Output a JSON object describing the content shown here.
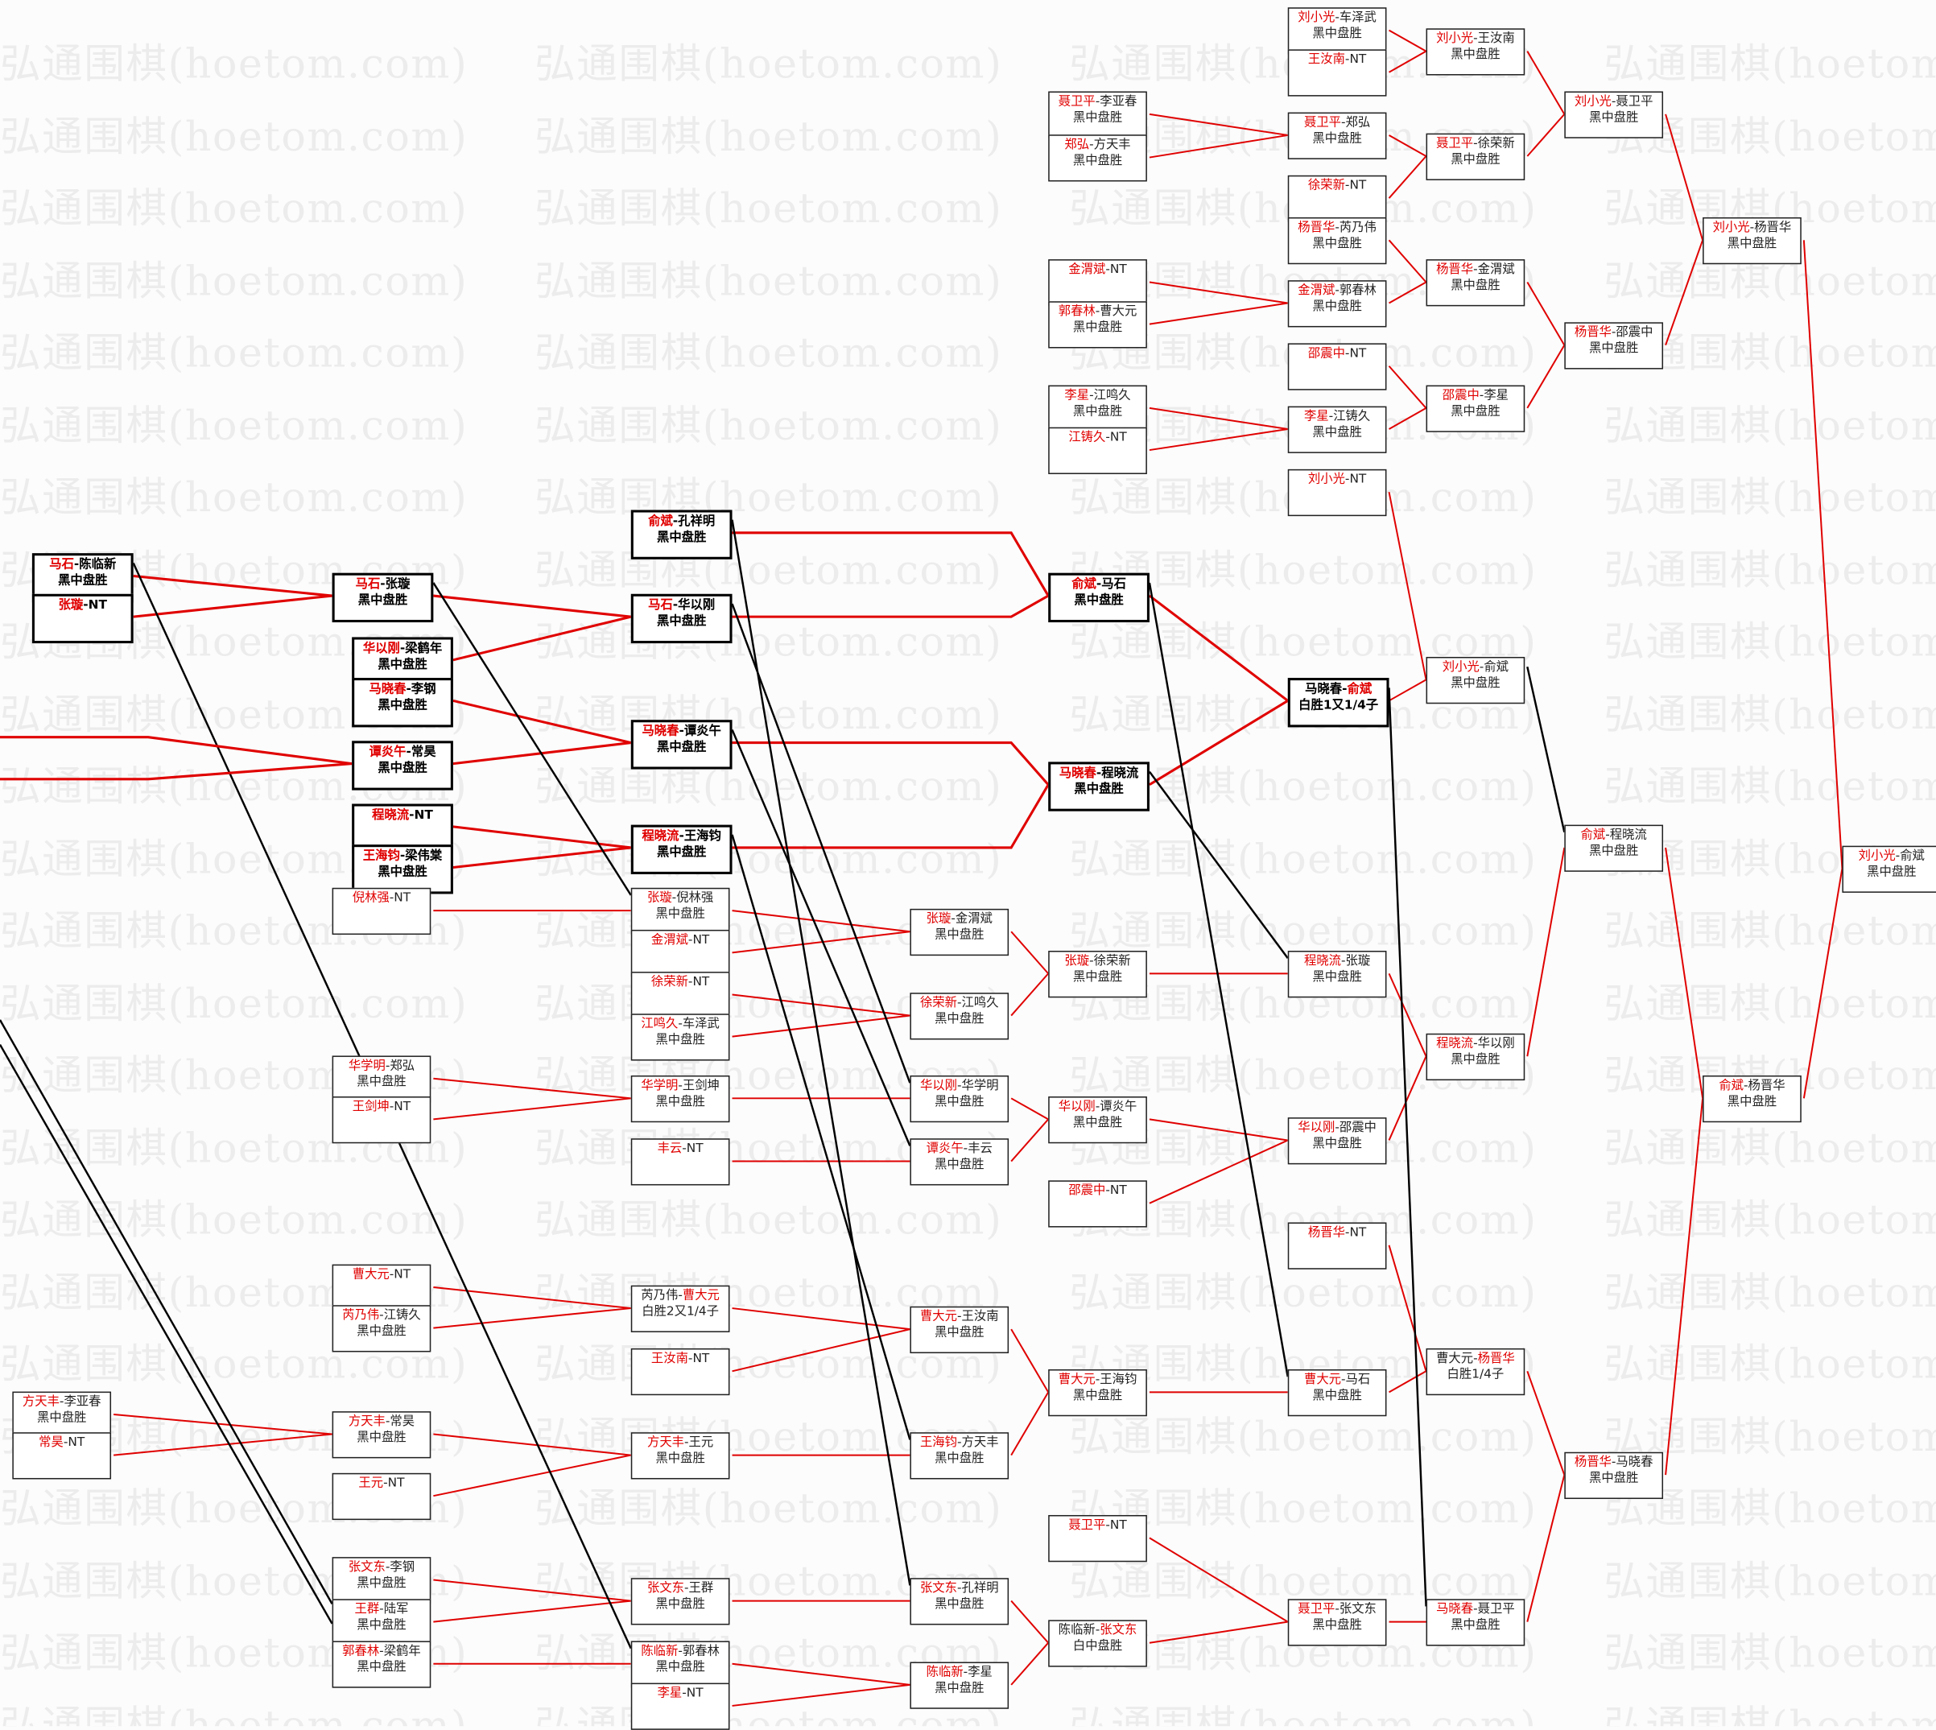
{
  "watermark": "弘通围棋(hoetom.com)",
  "colors": {
    "winner_text": "#e00000",
    "winner_path": "#e00000",
    "loser_path": "#000000"
  },
  "matches": {
    "a1": {
      "p1": "方天丰",
      "p2": "李亚春",
      "red": 1,
      "result": "黑中盘胜"
    },
    "a2": {
      "p1": "常昊",
      "p2": "NT",
      "red": 1,
      "result": ""
    },
    "a3": {
      "p1": "马石",
      "p2": "陈临新",
      "red": 1,
      "result": "黑中盘胜",
      "bold": true
    },
    "a4": {
      "p1": "张璇",
      "p2": "NT",
      "red": 1,
      "result": "",
      "bold": true
    },
    "b1": {
      "p1": "马石",
      "p2": "张璇",
      "red": 1,
      "result": "黑中盘胜",
      "bold": true
    },
    "b2": {
      "p1": "华以刚",
      "p2": "梁鹤年",
      "red": 1,
      "result": "黑中盘胜",
      "bold": true
    },
    "b3": {
      "p1": "马晓春",
      "p2": "李钢",
      "red": 1,
      "result": "黑中盘胜",
      "bold": true
    },
    "b4": {
      "p1": "谭炎午",
      "p2": "常昊",
      "red": 1,
      "result": "黑中盘胜",
      "bold": true
    },
    "b5": {
      "p1": "程晓流",
      "p2": "NT",
      "red": 1,
      "result": "",
      "bold": true
    },
    "b6": {
      "p1": "王海钧",
      "p2": "梁伟棠",
      "red": 1,
      "result": "黑中盘胜",
      "bold": true
    },
    "b7": {
      "p1": "倪林强",
      "p2": "NT",
      "red": 1,
      "result": ""
    },
    "b8": {
      "p1": "华学明",
      "p2": "郑弘",
      "red": 1,
      "result": "黑中盘胜"
    },
    "b9": {
      "p1": "王剑坤",
      "p2": "NT",
      "red": 1,
      "result": ""
    },
    "b10": {
      "p1": "曹大元",
      "p2": "NT",
      "red": 1,
      "result": ""
    },
    "b11": {
      "p1": "芮乃伟",
      "p2": "江铸久",
      "red": 1,
      "result": "黑中盘胜"
    },
    "b12": {
      "p1": "方天丰",
      "p2": "常昊",
      "red": 1,
      "result": "黑中盘胜"
    },
    "b13": {
      "p1": "王元",
      "p2": "NT",
      "red": 1,
      "result": ""
    },
    "b14": {
      "p1": "张文东",
      "p2": "李钢",
      "red": 1,
      "result": "黑中盘胜"
    },
    "b15": {
      "p1": "王群",
      "p2": "陆军",
      "red": 1,
      "result": "黑中盘胜"
    },
    "b16": {
      "p1": "郭春林",
      "p2": "梁鹤年",
      "red": 1,
      "result": "黑中盘胜"
    },
    "c1": {
      "p1": "俞斌",
      "p2": "孔祥明",
      "red": 1,
      "result": "黑中盘胜",
      "bold": true
    },
    "c2": {
      "p1": "马石",
      "p2": "华以刚",
      "red": 1,
      "result": "黑中盘胜",
      "bold": true
    },
    "c3": {
      "p1": "马晓春",
      "p2": "谭炎午",
      "red": 1,
      "result": "黑中盘胜",
      "bold": true
    },
    "c4": {
      "p1": "程晓流",
      "p2": "王海钧",
      "red": 1,
      "result": "黑中盘胜",
      "bold": true
    },
    "c5": {
      "p1": "张璇",
      "p2": "倪林强",
      "red": 1,
      "result": "黑中盘胜"
    },
    "c6": {
      "p1": "金渭斌",
      "p2": "NT",
      "red": 1,
      "result": ""
    },
    "c7": {
      "p1": "徐荣新",
      "p2": "NT",
      "red": 1,
      "result": ""
    },
    "c8": {
      "p1": "江鸣久",
      "p2": "车泽武",
      "red": 1,
      "result": "黑中盘胜"
    },
    "c9": {
      "p1": "华学明",
      "p2": "王剑坤",
      "red": 1,
      "result": "黑中盘胜"
    },
    "c10": {
      "p1": "丰云",
      "p2": "NT",
      "red": 1,
      "result": ""
    },
    "c11": {
      "p1": "芮乃伟",
      "p2": "曹大元",
      "red": 2,
      "result": "白胜2又1/4子"
    },
    "c12": {
      "p1": "王汝南",
      "p2": "NT",
      "red": 1,
      "result": ""
    },
    "c13": {
      "p1": "方天丰",
      "p2": "王元",
      "red": 1,
      "result": "黑中盘胜"
    },
    "c14": {
      "p1": "张文东",
      "p2": "王群",
      "red": 1,
      "result": "黑中盘胜"
    },
    "c15": {
      "p1": "陈临新",
      "p2": "郭春林",
      "red": 1,
      "result": "黑中盘胜"
    },
    "c16": {
      "p1": "李星",
      "p2": "NT",
      "red": 1,
      "result": ""
    },
    "d1": {
      "p1": "张璇",
      "p2": "金渭斌",
      "red": 1,
      "result": "黑中盘胜"
    },
    "d2": {
      "p1": "徐荣新",
      "p2": "江鸣久",
      "red": 1,
      "result": "黑中盘胜"
    },
    "d3": {
      "p1": "华以刚",
      "p2": "华学明",
      "red": 1,
      "result": "黑中盘胜"
    },
    "d4": {
      "p1": "谭炎午",
      "p2": "丰云",
      "red": 1,
      "result": "黑中盘胜"
    },
    "d5": {
      "p1": "曹大元",
      "p2": "王汝南",
      "red": 1,
      "result": "黑中盘胜"
    },
    "d6": {
      "p1": "王海钧",
      "p2": "方天丰",
      "red": 1,
      "result": "黑中盘胜"
    },
    "d7": {
      "p1": "张文东",
      "p2": "孔祥明",
      "red": 1,
      "result": "黑中盘胜"
    },
    "d8": {
      "p1": "陈临新",
      "p2": "李星",
      "red": 1,
      "result": "黑中盘胜"
    },
    "e1": {
      "p1": "聂卫平",
      "p2": "李亚春",
      "red": 1,
      "result": "黑中盘胜"
    },
    "e2": {
      "p1": "郑弘",
      "p2": "方天丰",
      "red": 1,
      "result": "黑中盘胜"
    },
    "e3": {
      "p1": "金渭斌",
      "p2": "NT",
      "red": 1,
      "result": ""
    },
    "e4": {
      "p1": "郭春林",
      "p2": "曹大元",
      "red": 1,
      "result": "黑中盘胜"
    },
    "e5": {
      "p1": "李星",
      "p2": "江鸣久",
      "red": 1,
      "result": "黑中盘胜"
    },
    "e6": {
      "p1": "江铸久",
      "p2": "NT",
      "red": 1,
      "result": ""
    },
    "e7": {
      "p1": "俞斌",
      "p2": "马石",
      "red": 1,
      "result": "黑中盘胜",
      "bold": true
    },
    "e8": {
      "p1": "马晓春",
      "p2": "程晓流",
      "red": 1,
      "result": "黑中盘胜",
      "bold": true
    },
    "e9": {
      "p1": "张璇",
      "p2": "徐荣新",
      "red": 1,
      "result": "黑中盘胜"
    },
    "e10": {
      "p1": "华以刚",
      "p2": "谭炎午",
      "red": 1,
      "result": "黑中盘胜"
    },
    "e11": {
      "p1": "邵震中",
      "p2": "NT",
      "red": 1,
      "result": ""
    },
    "e12": {
      "p1": "曹大元",
      "p2": "王海钧",
      "red": 1,
      "result": "黑中盘胜"
    },
    "e13": {
      "p1": "聂卫平",
      "p2": "NT",
      "red": 1,
      "result": ""
    },
    "e14": {
      "p1": "陈临新",
      "p2": "张文东",
      "red": 2,
      "result": "白中盘胜"
    },
    "f1": {
      "p1": "刘小光",
      "p2": "车泽武",
      "red": 1,
      "result": "黑中盘胜"
    },
    "f2": {
      "p1": "王汝南",
      "p2": "NT",
      "red": 1,
      "result": ""
    },
    "f3": {
      "p1": "聂卫平",
      "p2": "郑弘",
      "red": 1,
      "result": "黑中盘胜"
    },
    "f4": {
      "p1": "徐荣新",
      "p2": "NT",
      "red": 1,
      "result": ""
    },
    "f5": {
      "p1": "杨晋华",
      "p2": "芮乃伟",
      "red": 1,
      "result": "黑中盘胜"
    },
    "f6": {
      "p1": "金渭斌",
      "p2": "郭春林",
      "red": 1,
      "result": "黑中盘胜"
    },
    "f7": {
      "p1": "邵震中",
      "p2": "NT",
      "red": 1,
      "result": ""
    },
    "f8": {
      "p1": "李星",
      "p2": "江铸久",
      "red": 1,
      "result": "黑中盘胜"
    },
    "f9": {
      "p1": "刘小光",
      "p2": "NT",
      "red": 1,
      "result": ""
    },
    "f10": {
      "p1": "马晓春",
      "p2": "俞斌",
      "red": 2,
      "result": "白胜1又1/4子",
      "bold": true
    },
    "f11": {
      "p1": "程晓流",
      "p2": "张璇",
      "red": 1,
      "result": "黑中盘胜"
    },
    "f12": {
      "p1": "华以刚",
      "p2": "邵震中",
      "red": 1,
      "result": "黑中盘胜"
    },
    "f13": {
      "p1": "杨晋华",
      "p2": "NT",
      "red": 1,
      "result": ""
    },
    "f14": {
      "p1": "曹大元",
      "p2": "马石",
      "red": 1,
      "result": "黑中盘胜"
    },
    "f15": {
      "p1": "聂卫平",
      "p2": "张文东",
      "red": 1,
      "result": "黑中盘胜"
    },
    "g1": {
      "p1": "刘小光",
      "p2": "王汝南",
      "red": 1,
      "result": "黑中盘胜"
    },
    "g2": {
      "p1": "聂卫平",
      "p2": "徐荣新",
      "red": 1,
      "result": "黑中盘胜"
    },
    "g3": {
      "p1": "杨晋华",
      "p2": "金渭斌",
      "red": 1,
      "result": "黑中盘胜"
    },
    "g4": {
      "p1": "邵震中",
      "p2": "李星",
      "red": 1,
      "result": "黑中盘胜"
    },
    "g5": {
      "p1": "刘小光",
      "p2": "俞斌",
      "red": 1,
      "result": "黑中盘胜"
    },
    "g6": {
      "p1": "程晓流",
      "p2": "华以刚",
      "red": 1,
      "result": "黑中盘胜"
    },
    "g7": {
      "p1": "曹大元",
      "p2": "杨晋华",
      "red": 2,
      "result": "白胜1/4子"
    },
    "g8": {
      "p1": "马晓春",
      "p2": "聂卫平",
      "red": 1,
      "result": "黑中盘胜"
    },
    "h1": {
      "p1": "刘小光",
      "p2": "聂卫平",
      "red": 1,
      "result": "黑中盘胜"
    },
    "h2": {
      "p1": "杨晋华",
      "p2": "邵震中",
      "red": 1,
      "result": "黑中盘胜"
    },
    "h3": {
      "p1": "俞斌",
      "p2": "程晓流",
      "red": 1,
      "result": "黑中盘胜"
    },
    "h4": {
      "p1": "杨晋华",
      "p2": "马晓春",
      "red": 1,
      "result": "黑中盘胜"
    },
    "i1": {
      "p1": "刘小光",
      "p2": "杨晋华",
      "red": 1,
      "result": "黑中盘胜"
    },
    "i2": {
      "p1": "俞斌",
      "p2": "杨晋华",
      "red": 1,
      "result": "黑中盘胜"
    },
    "j1": {
      "p1": "刘小光",
      "p2": "俞斌",
      "red": 1,
      "result": "黑中盘胜"
    }
  }
}
